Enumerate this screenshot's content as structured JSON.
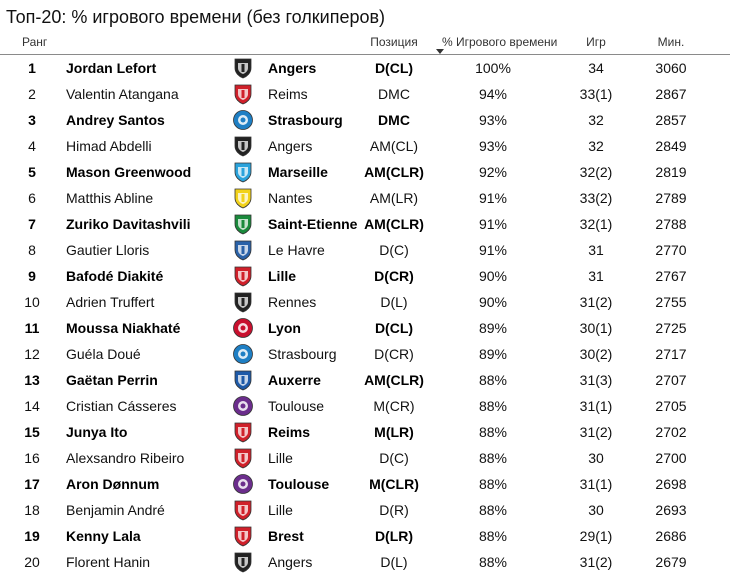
{
  "title": "Топ-20: % игрового времени (без голкиперов)",
  "columns": {
    "rank": "Ранг",
    "position": "Позиция",
    "pct": "% Игрового времени",
    "games": "Игр",
    "minutes": "Мин."
  },
  "chart_data": {
    "type": "table",
    "title": "Топ-20: % игрового времени (без голкиперов)",
    "columns": [
      "Ранг",
      "",
      "",
      "Позиция",
      "% Игрового времени",
      "Игр",
      "Мин."
    ],
    "sort_column": "% Игрового времени",
    "rows": [
      {
        "rank": "1",
        "player": "Jordan Lefort",
        "club": "Angers",
        "logo": "angers-logo",
        "position": "D(CL)",
        "pct": "100%",
        "games": "34",
        "minutes": "3060",
        "bold": true
      },
      {
        "rank": "2",
        "player": "Valentin Atangana",
        "club": "Reims",
        "logo": "reims-logo",
        "position": "DMC",
        "pct": "94%",
        "games": "33(1)",
        "minutes": "2867",
        "bold": false
      },
      {
        "rank": "3",
        "player": "Andrey Santos",
        "club": "Strasbourg",
        "logo": "strasbourg-logo",
        "position": "DMC",
        "pct": "93%",
        "games": "32",
        "minutes": "2857",
        "bold": true
      },
      {
        "rank": "4",
        "player": "Himad Abdelli",
        "club": "Angers",
        "logo": "angers-logo",
        "position": "AM(CL)",
        "pct": "93%",
        "games": "32",
        "minutes": "2849",
        "bold": false
      },
      {
        "rank": "5",
        "player": "Mason Greenwood",
        "club": "Marseille",
        "logo": "marseille-logo",
        "position": "AM(CLR)",
        "pct": "92%",
        "games": "32(2)",
        "minutes": "2819",
        "bold": true
      },
      {
        "rank": "6",
        "player": "Matthis Abline",
        "club": "Nantes",
        "logo": "nantes-logo",
        "position": "AM(LR)",
        "pct": "91%",
        "games": "33(2)",
        "minutes": "2789",
        "bold": false
      },
      {
        "rank": "7",
        "player": "Zuriko Davitashvili",
        "club": "Saint-Etienne",
        "logo": "saint-etienne-logo",
        "position": "AM(CLR)",
        "pct": "91%",
        "games": "32(1)",
        "minutes": "2788",
        "bold": true
      },
      {
        "rank": "8",
        "player": "Gautier Lloris",
        "club": "Le Havre",
        "logo": "le-havre-logo",
        "position": "D(C)",
        "pct": "91%",
        "games": "31",
        "minutes": "2770",
        "bold": false
      },
      {
        "rank": "9",
        "player": "Bafodé Diakité",
        "club": "Lille",
        "logo": "lille-logo",
        "position": "D(CR)",
        "pct": "90%",
        "games": "31",
        "minutes": "2767",
        "bold": true
      },
      {
        "rank": "10",
        "player": "Adrien Truffert",
        "club": "Rennes",
        "logo": "rennes-logo",
        "position": "D(L)",
        "pct": "90%",
        "games": "31(2)",
        "minutes": "2755",
        "bold": false
      },
      {
        "rank": "11",
        "player": "Moussa Niakhaté",
        "club": "Lyon",
        "logo": "lyon-logo",
        "position": "D(CL)",
        "pct": "89%",
        "games": "30(1)",
        "minutes": "2725",
        "bold": true
      },
      {
        "rank": "12",
        "player": "Guéla Doué",
        "club": "Strasbourg",
        "logo": "strasbourg-logo",
        "position": "D(CR)",
        "pct": "89%",
        "games": "30(2)",
        "minutes": "2717",
        "bold": false
      },
      {
        "rank": "13",
        "player": "Gaëtan Perrin",
        "club": "Auxerre",
        "logo": "auxerre-logo",
        "position": "AM(CLR)",
        "pct": "88%",
        "games": "31(3)",
        "minutes": "2707",
        "bold": true
      },
      {
        "rank": "14",
        "player": "Cristian Cásseres",
        "club": "Toulouse",
        "logo": "toulouse-logo",
        "position": "M(CR)",
        "pct": "88%",
        "games": "31(1)",
        "minutes": "2705",
        "bold": false
      },
      {
        "rank": "15",
        "player": "Junya Ito",
        "club": "Reims",
        "logo": "reims-logo",
        "position": "M(LR)",
        "pct": "88%",
        "games": "31(2)",
        "minutes": "2702",
        "bold": true
      },
      {
        "rank": "16",
        "player": "Alexsandro Ribeiro",
        "club": "Lille",
        "logo": "lille-logo",
        "position": "D(C)",
        "pct": "88%",
        "games": "30",
        "minutes": "2700",
        "bold": false
      },
      {
        "rank": "17",
        "player": "Aron Dønnum",
        "club": "Toulouse",
        "logo": "toulouse-logo",
        "position": "M(CLR)",
        "pct": "88%",
        "games": "31(1)",
        "minutes": "2698",
        "bold": true
      },
      {
        "rank": "18",
        "player": "Benjamin André",
        "club": "Lille",
        "logo": "lille-logo",
        "position": "D(R)",
        "pct": "88%",
        "games": "30",
        "minutes": "2693",
        "bold": false
      },
      {
        "rank": "19",
        "player": "Kenny Lala",
        "club": "Brest",
        "logo": "brest-logo",
        "position": "D(LR)",
        "pct": "88%",
        "games": "29(1)",
        "minutes": "2686",
        "bold": true
      },
      {
        "rank": "20",
        "player": "Florent Hanin",
        "club": "Angers",
        "logo": "angers-logo",
        "position": "D(L)",
        "pct": "88%",
        "games": "31(2)",
        "minutes": "2679",
        "bold": false
      }
    ]
  },
  "colors": {
    "angers-logo": "#222222",
    "reims-logo": "#d0202a",
    "strasbourg-logo": "#1e7fc4",
    "marseille-logo": "#2aa3dc",
    "nantes-logo": "#f2d21b",
    "saint-etienne-logo": "#1a8a3c",
    "le-havre-logo": "#2a62a8",
    "lille-logo": "#d0202a",
    "rennes-logo": "#222222",
    "lyon-logo": "#c8102e",
    "auxerre-logo": "#1e5aa8",
    "toulouse-logo": "#6b2d8c",
    "brest-logo": "#d0202a"
  },
  "logo_icons": {
    "angers-logo": "sco-shield-icon",
    "reims-logo": "reims-crest-icon",
    "strasbourg-logo": "strasbourg-circle-icon",
    "marseille-logo": "marseille-om-icon",
    "nantes-logo": "nantes-shield-icon",
    "saint-etienne-logo": "asse-shield-icon",
    "le-havre-logo": "hac-shield-icon",
    "lille-logo": "lille-dogue-icon",
    "rennes-logo": "rennes-shield-icon",
    "lyon-logo": "lyon-ol-icon",
    "auxerre-logo": "auxerre-shield-icon",
    "toulouse-logo": "toulouse-circle-icon",
    "brest-logo": "brest-shield-icon"
  }
}
